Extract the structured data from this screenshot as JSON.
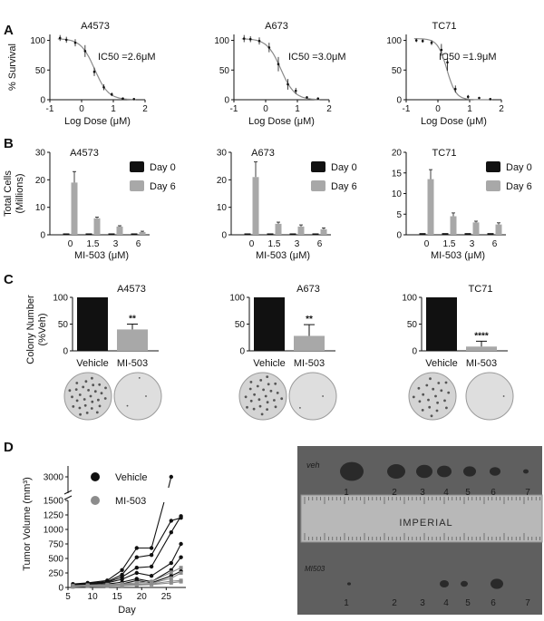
{
  "panel_labels": [
    "A",
    "B",
    "C",
    "D"
  ],
  "colors": {
    "ink": "#111111",
    "curve": "#8a8a8a",
    "black": "#111111",
    "gray": "#a8a8a8",
    "mi_series": "#8c8c8c",
    "photo_bg": "#5f5f5f"
  },
  "chart_data": [
    {
      "panel": "A",
      "type": "line",
      "title": "A4573",
      "annotation": "IC50 =2.6μM",
      "xlabel": "Log Dose (μM)",
      "ylabel": "% Survival",
      "xlim": [
        -1,
        2
      ],
      "ylim": [
        0,
        110
      ],
      "xticks": [
        -1,
        0,
        1,
        2
      ],
      "yticks": [
        0,
        50,
        100
      ],
      "log_ic50": 0.41,
      "hill": 2.0,
      "points": [
        [
          -0.68,
          104
        ],
        [
          -0.48,
          101
        ],
        [
          -0.2,
          96
        ],
        [
          0.11,
          82
        ],
        [
          0.4,
          47
        ],
        [
          0.7,
          21
        ],
        [
          0.95,
          9
        ],
        [
          1.3,
          2
        ],
        [
          1.65,
          1
        ]
      ],
      "errors": [
        5,
        5,
        6,
        10,
        7,
        5,
        3,
        1,
        1
      ]
    },
    {
      "panel": "A",
      "type": "line",
      "title": "A673",
      "annotation": "IC50 =3.0μM",
      "xlabel": "Log Dose (μM)",
      "ylabel": "",
      "xlim": [
        -1,
        2
      ],
      "ylim": [
        0,
        110
      ],
      "xticks": [
        -1,
        0,
        1,
        2
      ],
      "yticks": [
        0,
        50,
        100
      ],
      "log_ic50": 0.48,
      "hill": 2.0,
      "points": [
        [
          -0.68,
          103
        ],
        [
          -0.48,
          102
        ],
        [
          -0.2,
          99
        ],
        [
          0.11,
          88
        ],
        [
          0.4,
          60
        ],
        [
          0.7,
          26
        ],
        [
          0.95,
          15
        ],
        [
          1.3,
          4
        ],
        [
          1.65,
          2
        ]
      ],
      "errors": [
        6,
        5,
        6,
        8,
        12,
        9,
        5,
        2,
        1
      ]
    },
    {
      "panel": "A",
      "type": "line",
      "title": "TC71",
      "annotation": "IC50 =1.9μM",
      "xlabel": "Log Dose (μM)",
      "ylabel": "",
      "xlim": [
        -1,
        2
      ],
      "ylim": [
        0,
        110
      ],
      "xticks": [
        -1,
        0,
        1,
        2
      ],
      "yticks": [
        0,
        50,
        100
      ],
      "log_ic50": 0.28,
      "hill": 3.0,
      "points": [
        [
          -0.68,
          100
        ],
        [
          -0.48,
          99
        ],
        [
          -0.2,
          96
        ],
        [
          0.11,
          84
        ],
        [
          0.3,
          63
        ],
        [
          0.55,
          18
        ],
        [
          0.95,
          5
        ],
        [
          1.3,
          3
        ],
        [
          1.65,
          1
        ]
      ],
      "errors": [
        3,
        3,
        4,
        10,
        14,
        6,
        3,
        1,
        1
      ]
    },
    {
      "panel": "B",
      "type": "bar",
      "title": "A4573",
      "xlabel": "MI-503 (μM)",
      "ylabel": "Total Cells (Millions)",
      "ylim": [
        0,
        30
      ],
      "yticks": [
        0,
        10,
        20,
        30
      ],
      "categories": [
        "0",
        "1.5",
        "3",
        "6"
      ],
      "series": [
        {
          "name": "Day 0",
          "values": [
            0.5,
            0.5,
            0.5,
            0.5
          ],
          "errors": [
            0,
            0,
            0,
            0
          ]
        },
        {
          "name": "Day 6",
          "values": [
            19,
            6,
            3,
            1
          ],
          "errors": [
            4,
            0.4,
            0.3,
            0.3
          ]
        }
      ]
    },
    {
      "panel": "B",
      "type": "bar",
      "title": "A673",
      "xlabel": "MI-503 (μM)",
      "ylabel": "",
      "ylim": [
        0,
        30
      ],
      "yticks": [
        0,
        10,
        20,
        30
      ],
      "categories": [
        "0",
        "1.5",
        "3",
        "6"
      ],
      "series": [
        {
          "name": "Day 0",
          "values": [
            0.5,
            0.5,
            0.5,
            0.5
          ],
          "errors": [
            0,
            0,
            0,
            0
          ]
        },
        {
          "name": "Day 6",
          "values": [
            21,
            4,
            3,
            2
          ],
          "errors": [
            5.5,
            0.6,
            0.6,
            0.5
          ]
        }
      ]
    },
    {
      "panel": "B",
      "type": "bar",
      "title": "TC71",
      "xlabel": "MI-503 (μM)",
      "ylabel": "",
      "ylim": [
        0,
        20
      ],
      "yticks": [
        0,
        5,
        10,
        15,
        20
      ],
      "categories": [
        "0",
        "1.5",
        "3",
        "6"
      ],
      "series": [
        {
          "name": "Day 0",
          "values": [
            0.4,
            0.4,
            0.4,
            0.4
          ],
          "errors": [
            0,
            0,
            0,
            0
          ]
        },
        {
          "name": "Day 6",
          "values": [
            13.5,
            4.5,
            3,
            2.5
          ],
          "errors": [
            2.3,
            0.8,
            0.3,
            0.4
          ]
        }
      ]
    },
    {
      "panel": "C",
      "type": "bar",
      "title": "A4573",
      "xlabel": "",
      "ylabel": "Colony Number (%Veh)",
      "ylim": [
        0,
        100
      ],
      "yticks": [
        0,
        50,
        100
      ],
      "categories": [
        "Vehicle",
        "MI-503"
      ],
      "values": [
        100,
        40
      ],
      "errors": [
        0,
        10
      ],
      "significance": [
        "",
        "**"
      ]
    },
    {
      "panel": "C",
      "type": "bar",
      "title": "A673",
      "xlabel": "",
      "ylabel": "",
      "ylim": [
        0,
        100
      ],
      "yticks": [
        0,
        50,
        100
      ],
      "categories": [
        "Vehicle",
        "MI-503"
      ],
      "values": [
        100,
        28
      ],
      "errors": [
        0,
        21
      ],
      "significance": [
        "",
        "**"
      ]
    },
    {
      "panel": "C",
      "type": "bar",
      "title": "TC71",
      "xlabel": "",
      "ylabel": "",
      "ylim": [
        0,
        100
      ],
      "yticks": [
        0,
        50,
        100
      ],
      "categories": [
        "Vehicle",
        "MI-503"
      ],
      "values": [
        100,
        8
      ],
      "errors": [
        0,
        10
      ],
      "significance": [
        "",
        "****"
      ]
    },
    {
      "panel": "D",
      "type": "line",
      "title": "",
      "xlabel": "Day",
      "ylabel": "Tumor Volume (mm³)",
      "xlim": [
        5,
        29
      ],
      "xticks": [
        5,
        10,
        15,
        20,
        25
      ],
      "yticks": [
        0,
        250,
        500,
        750,
        1000,
        1250,
        1500
      ],
      "ybreak": {
        "from": 1500,
        "upper": 3000
      },
      "series": [
        {
          "name": "Vehicle",
          "lines": [
            {
              "x": [
                6,
                9,
                13,
                16,
                19,
                22,
                26
              ],
              "y": [
                60,
                80,
                120,
                300,
                680,
                680,
                2900
              ]
            },
            {
              "x": [
                6,
                9,
                13,
                16,
                19,
                22,
                26,
                28
              ],
              "y": [
                50,
                70,
                100,
                220,
                520,
                560,
                1150,
                1200
              ]
            },
            {
              "x": [
                6,
                9,
                13,
                16,
                19,
                22,
                26,
                28
              ],
              "y": [
                40,
                60,
                90,
                180,
                340,
                360,
                950,
                1230
              ]
            },
            {
              "x": [
                6,
                9,
                13,
                16,
                19,
                22,
                26,
                28
              ],
              "y": [
                30,
                50,
                80,
                140,
                250,
                200,
                420,
                750
              ]
            },
            {
              "x": [
                6,
                9,
                13,
                16,
                19,
                22,
                26,
                28
              ],
              "y": [
                20,
                40,
                60,
                90,
                150,
                100,
                300,
                520
              ]
            },
            {
              "x": [
                6,
                9,
                13,
                16,
                19,
                22,
                26,
                28
              ],
              "y": [
                20,
                30,
                40,
                60,
                120,
                80,
                200,
                280
              ]
            }
          ]
        },
        {
          "name": "MI-503",
          "lines": [
            {
              "x": [
                6,
                9,
                13,
                16,
                19,
                22,
                26,
                28
              ],
              "y": [
                30,
                40,
                50,
                60,
                80,
                100,
                260,
                340
              ]
            },
            {
              "x": [
                6,
                9,
                13,
                16,
                19,
                22,
                26,
                28
              ],
              "y": [
                20,
                30,
                40,
                50,
                60,
                70,
                160,
                250
              ]
            },
            {
              "x": [
                6,
                9,
                13,
                16,
                19,
                22,
                26,
                28
              ],
              "y": [
                20,
                25,
                30,
                40,
                50,
                60,
                110,
                120
              ]
            },
            {
              "x": [
                6,
                9,
                13,
                16,
                19,
                22,
                26,
                28
              ],
              "y": [
                10,
                20,
                25,
                30,
                40,
                50,
                80,
                100
              ]
            }
          ]
        }
      ]
    }
  ],
  "photo": {
    "top_label": "veh",
    "bottom_label": "MI503",
    "ruler_text": "IMPERIAL",
    "numbers": [
      "1",
      "2",
      "3",
      "4",
      "5",
      "6",
      "7"
    ]
  }
}
